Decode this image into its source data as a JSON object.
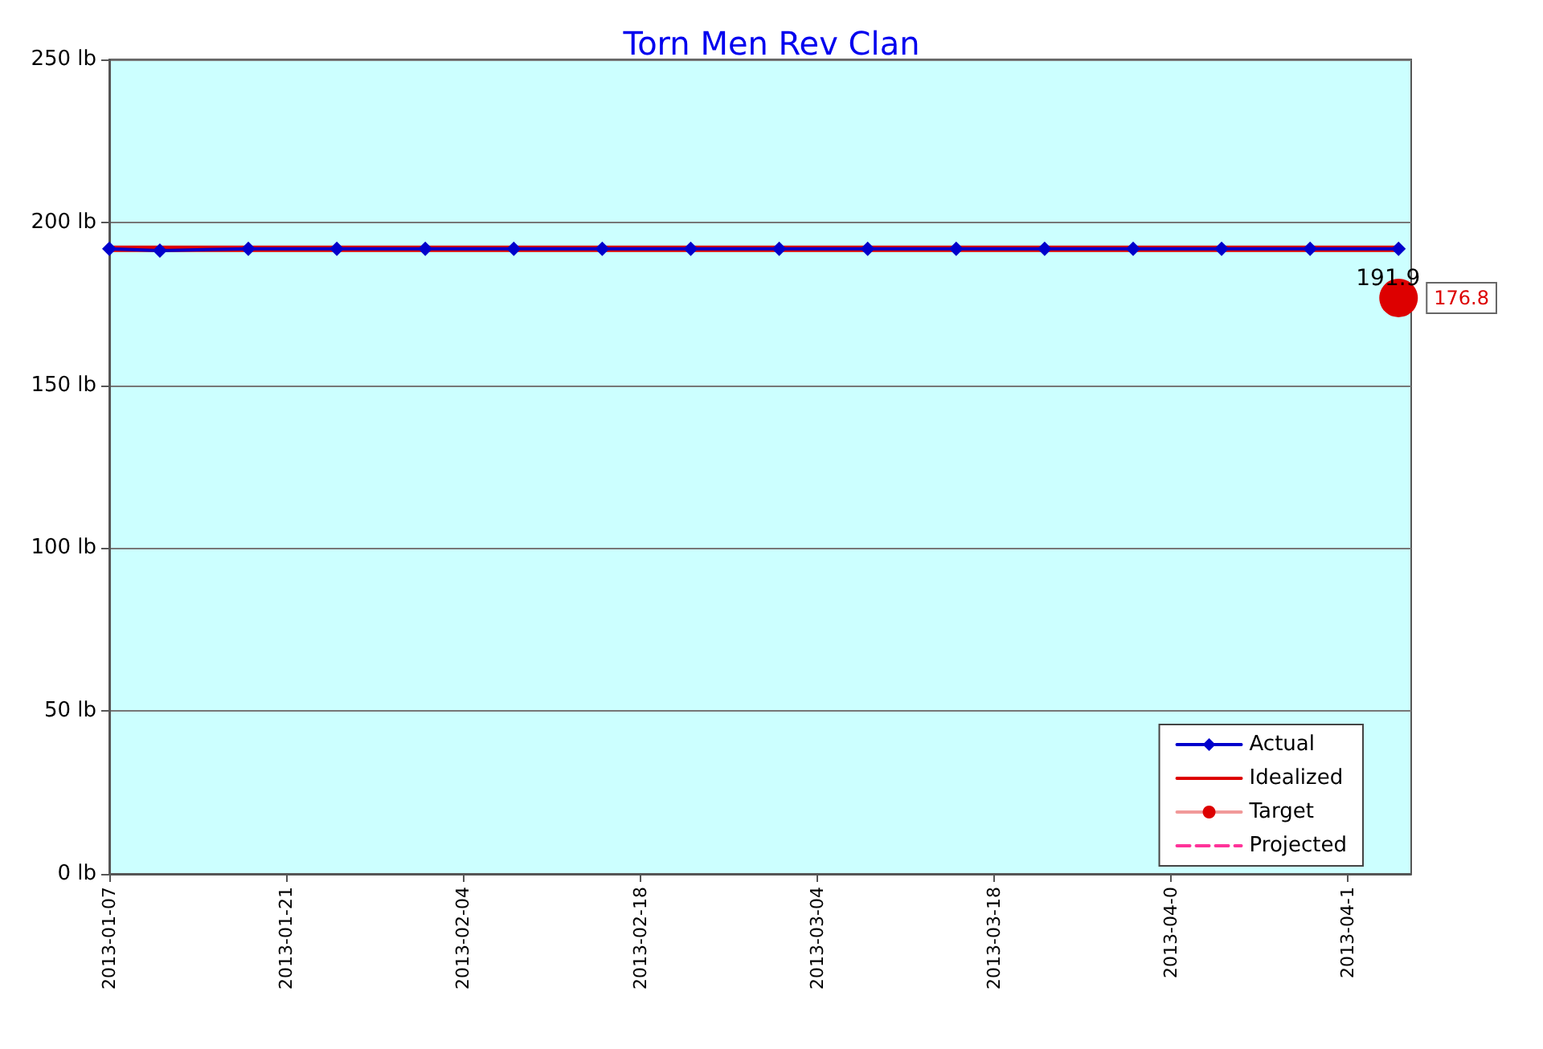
{
  "chart_data": {
    "type": "line",
    "title": "Torn Men Rev Clan",
    "xlim": [
      "2013-01-07",
      "2013-04-20"
    ],
    "xticks": [
      {
        "value": "2013-01-07",
        "label": "2013-01-07"
      },
      {
        "value": "2013-01-21",
        "label": "2013-01-21"
      },
      {
        "value": "2013-02-04",
        "label": "2013-02-04"
      },
      {
        "value": "2013-02-18",
        "label": "2013-02-18"
      },
      {
        "value": "2013-03-04",
        "label": "2013-03-04"
      },
      {
        "value": "2013-03-18",
        "label": "2013-03-18"
      },
      {
        "value": "2013-04-01",
        "label": "2013-04-0"
      },
      {
        "value": "2013-04-15",
        "label": "2013-04-1"
      }
    ],
    "ylim": [
      0,
      250
    ],
    "yticks": [
      {
        "value": 0,
        "label": "0 lb"
      },
      {
        "value": 50,
        "label": "50 lb"
      },
      {
        "value": 100,
        "label": "100 lb"
      },
      {
        "value": 150,
        "label": "150 lb"
      },
      {
        "value": 200,
        "label": "200 lb"
      },
      {
        "value": 250,
        "label": "250 lb"
      }
    ],
    "grid": "y",
    "legend": "bottom right",
    "series": [
      {
        "name": "Actual",
        "color": "#0000cc",
        "marker": "diamond",
        "line_style": "solid",
        "x": [
          "2013-01-07",
          "2013-01-11",
          "2013-01-18",
          "2013-01-25",
          "2013-02-01",
          "2013-02-08",
          "2013-02-15",
          "2013-02-22",
          "2013-03-01",
          "2013-03-08",
          "2013-03-15",
          "2013-03-22",
          "2013-03-29",
          "2013-04-05",
          "2013-04-12",
          "2013-04-19"
        ],
        "values": [
          191.9,
          191.3,
          191.9,
          191.9,
          191.9,
          191.9,
          191.9,
          191.9,
          191.9,
          191.9,
          191.9,
          191.9,
          191.9,
          191.9,
          191.9,
          191.9
        ],
        "value_labels": [
          null,
          null,
          null,
          null,
          null,
          null,
          null,
          null,
          null,
          null,
          null,
          null,
          null,
          null,
          null,
          "191.9"
        ]
      },
      {
        "name": "Idealized",
        "color": "#dd0000",
        "marker": "none",
        "line_style": "solid",
        "x": [
          "2013-01-07",
          "2013-04-19"
        ],
        "values": [
          191.9,
          191.9
        ]
      },
      {
        "name": "Target",
        "color": "#dd0000",
        "marker": "circle",
        "line_style": "solid",
        "x": [
          "2013-04-19"
        ],
        "values": [
          176.8
        ],
        "value_labels": [
          "176.8"
        ]
      },
      {
        "name": "Projected",
        "color": "#ff3399",
        "marker": "none",
        "line_style": "dashed"
      }
    ]
  }
}
